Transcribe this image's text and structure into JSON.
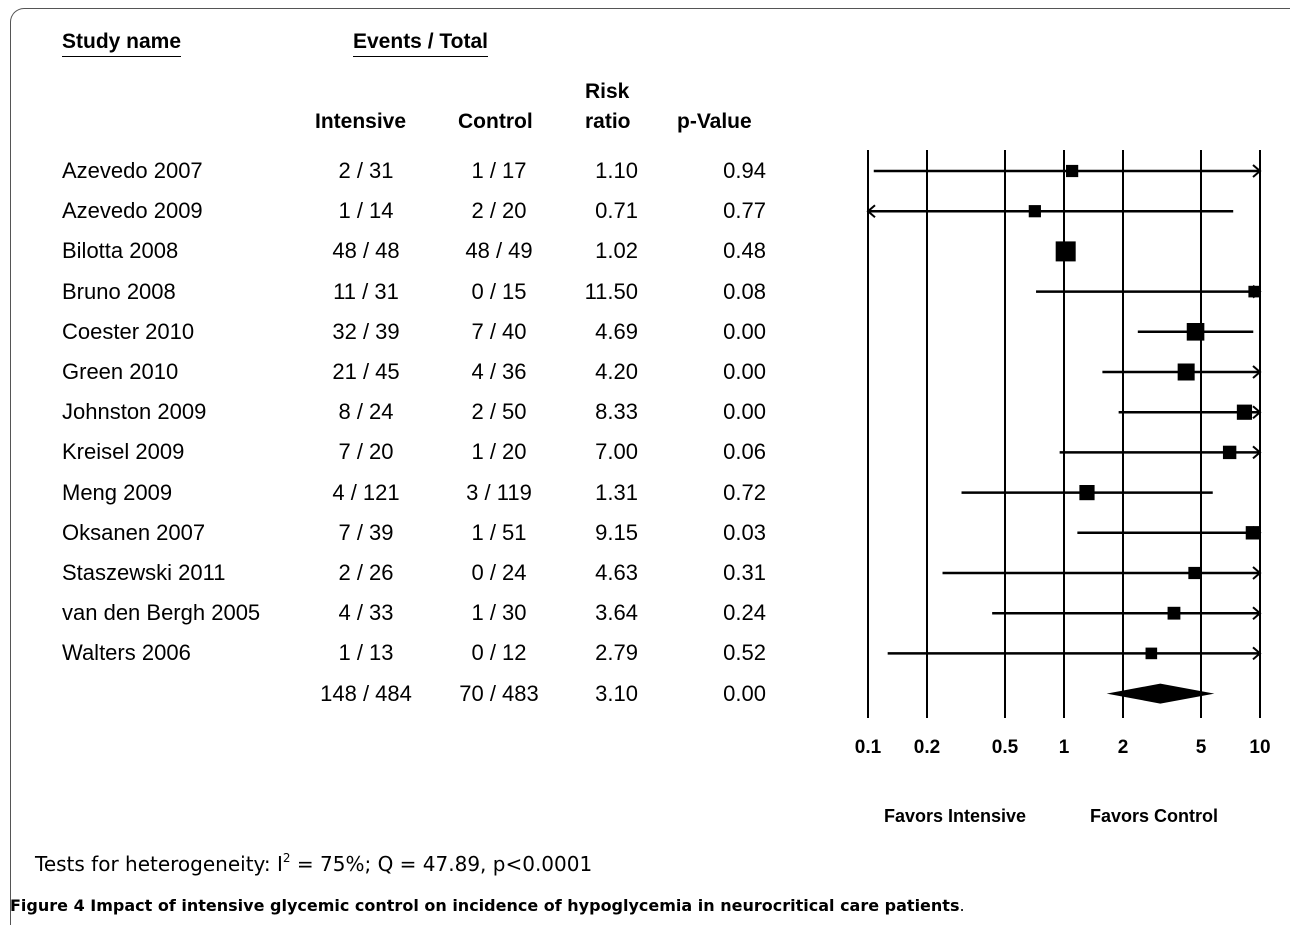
{
  "headers": {
    "study_name": "Study name",
    "events_total": "Events / Total",
    "intensive": "Intensive",
    "control": "Control",
    "risk_line1": "Risk",
    "risk_line2": "ratio",
    "pvalue": "p-Value"
  },
  "chart_data": {
    "type": "forest",
    "x_scale": "log",
    "xlim": [
      0.1,
      10
    ],
    "x_ticks": [
      "0.1",
      "0.2",
      "0.5",
      "1",
      "2",
      "5",
      "10"
    ],
    "x_tick_values": [
      0.1,
      0.2,
      0.5,
      1,
      2,
      5,
      10
    ],
    "favors_left": "Favors Intensive",
    "favors_right": "Favors Control",
    "studies": [
      {
        "name": "Azevedo 2007",
        "intensive": "2 / 31",
        "control": "1 / 17",
        "rr_text": "1.10",
        "p_text": "0.94",
        "rr": 1.1,
        "lower": 0.107,
        "upper": 11.3,
        "weight": 0.35
      },
      {
        "name": "Azevedo 2009",
        "intensive": "1 / 14",
        "control": "2 / 20",
        "rr_text": "0.71",
        "p_text": "0.77",
        "rr": 0.71,
        "lower": 0.07,
        "upper": 7.3,
        "weight": 0.35
      },
      {
        "name": "Bilotta 2008",
        "intensive": "48 / 48",
        "control": "48 / 49",
        "rr_text": "1.02",
        "p_text": "0.48",
        "rr": 1.02,
        "lower": 0.97,
        "upper": 1.07,
        "weight": 1.0
      },
      {
        "name": "Bruno 2008",
        "intensive": "11 / 31",
        "control": "0 / 15",
        "rr_text": "11.50",
        "p_text": "0.08",
        "rr": 11.5,
        "lower": 0.72,
        "upper": 183,
        "weight": 0.3
      },
      {
        "name": "Coester 2010",
        "intensive": "32 / 39",
        "control": "7 / 40",
        "rr_text": "4.69",
        "p_text": "0.00",
        "rr": 4.69,
        "lower": 2.38,
        "upper": 9.24,
        "weight": 0.8
      },
      {
        "name": "Green 2010",
        "intensive": "21 / 45",
        "control": "4 / 36",
        "rr_text": "4.20",
        "p_text": "0.00",
        "rr": 4.2,
        "lower": 1.57,
        "upper": 11.2,
        "weight": 0.75
      },
      {
        "name": "Johnston 2009",
        "intensive": "8 / 24",
        "control": "2 / 50",
        "rr_text": "8.33",
        "p_text": "0.00",
        "rr": 8.33,
        "lower": 1.9,
        "upper": 36.5,
        "weight": 0.6
      },
      {
        "name": "Kreisel 2009",
        "intensive": "7 / 20",
        "control": "1 / 20",
        "rr_text": "7.00",
        "p_text": "0.06",
        "rr": 7.0,
        "lower": 0.95,
        "upper": 51.5,
        "weight": 0.45
      },
      {
        "name": "Meng 2009",
        "intensive": "4 / 121",
        "control": "3 / 119",
        "rr_text": "1.31",
        "p_text": "0.72",
        "rr": 1.31,
        "lower": 0.3,
        "upper": 5.74,
        "weight": 0.6
      },
      {
        "name": "Oksanen 2007",
        "intensive": "7 / 39",
        "control": "1 / 51",
        "rr_text": "9.15",
        "p_text": "0.03",
        "rr": 9.15,
        "lower": 1.17,
        "upper": 71.5,
        "weight": 0.45
      },
      {
        "name": "Staszewski 2011",
        "intensive": "2 / 26",
        "control": "0 / 24",
        "rr_text": "4.63",
        "p_text": "0.31",
        "rr": 4.63,
        "lower": 0.24,
        "upper": 91.5,
        "weight": 0.35
      },
      {
        "name": "van den Bergh 2005",
        "intensive": "4 / 33",
        "control": "1 / 30",
        "rr_text": "3.64",
        "p_text": "0.24",
        "rr": 3.64,
        "lower": 0.43,
        "upper": 30.8,
        "weight": 0.4
      },
      {
        "name": "Walters 2006",
        "intensive": "1 / 13",
        "control": "0 / 12",
        "rr_text": "2.79",
        "p_text": "0.52",
        "rr": 2.79,
        "lower": 0.126,
        "upper": 61.5,
        "weight": 0.3
      }
    ],
    "summary": {
      "intensive": "148 / 484",
      "control": "70 / 483",
      "rr_text": "3.10",
      "p_text": "0.00",
      "rr": 3.1,
      "lower": 1.65,
      "upper": 5.85
    }
  },
  "heterogeneity": {
    "prefix": "Tests for heterogeneity: I",
    "sup": "2",
    "suffix": " = 75%; Q = 47.89, p<0.0001"
  },
  "caption": {
    "label": "Figure 4",
    "text": " Impact of intensive glycemic control on incidence of hypoglycemia in neurocritical care patients",
    "end": "."
  }
}
